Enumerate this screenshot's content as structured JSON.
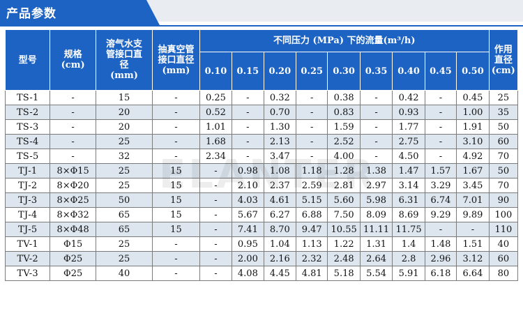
{
  "title": "产品参数",
  "watermark": "ELANTER",
  "headers": {
    "model": "型号",
    "spec": "规格",
    "spec_unit": "(cm)",
    "water": "溶气水支管接口直径",
    "water_unit": "(mm)",
    "vacuum": "抽真空管接口直径",
    "vacuum_unit": "(mm)",
    "flow": "不同压力 (MPa) 下的流量(m³/h)",
    "pressures": [
      "0.10",
      "0.15",
      "0.20",
      "0.25",
      "0.30",
      "0.35",
      "0.40",
      "0.45",
      "0.50"
    ],
    "dia": "作用直径",
    "dia_unit": "(cm)"
  },
  "rows": [
    [
      "TS-1",
      "-",
      "15",
      "-",
      "0.25",
      "-",
      "0.32",
      "-",
      "0.38",
      "-",
      "0.42",
      "-",
      "0.45",
      "25"
    ],
    [
      "TS-2",
      "-",
      "20",
      "-",
      "0.52",
      "-",
      "0.70",
      "-",
      "0.83",
      "-",
      "0.93",
      "-",
      "1.00",
      "35"
    ],
    [
      "TS-3",
      "-",
      "20",
      "-",
      "1.01",
      "-",
      "1.30",
      "-",
      "1.59",
      "-",
      "1.77",
      "-",
      "1.91",
      "50"
    ],
    [
      "TS-4",
      "-",
      "25",
      "-",
      "1.68",
      "-",
      "2.13",
      "-",
      "2.52",
      "-",
      "2.75",
      "-",
      "3.10",
      "60"
    ],
    [
      "TS-5",
      "-",
      "32",
      "-",
      "2.34",
      "-",
      "3.47",
      "-",
      "4.00",
      "-",
      "4.50",
      "-",
      "4.92",
      "70"
    ],
    [
      "TJ-1",
      "8×Φ15",
      "25",
      "15",
      "-",
      "0.98",
      "1.08",
      "1.18",
      "1.28",
      "1.38",
      "1.47",
      "1.57",
      "1.67",
      "50"
    ],
    [
      "TJ-2",
      "8×Φ20",
      "25",
      "15",
      "-",
      "2.10",
      "2.37",
      "2.59",
      "2.81",
      "2.97",
      "3.14",
      "3.29",
      "3.45",
      "70"
    ],
    [
      "TJ-3",
      "8×Φ25",
      "50",
      "15",
      "-",
      "4.03",
      "4.61",
      "5.15",
      "5.60",
      "5.98",
      "6.31",
      "6.74",
      "7.01",
      "90"
    ],
    [
      "TJ-4",
      "8×Φ32",
      "65",
      "15",
      "-",
      "5.67",
      "6.27",
      "6.88",
      "7.50",
      "8.09",
      "8.69",
      "9.29",
      "9.89",
      "100"
    ],
    [
      "TJ-5",
      "8×Φ48",
      "65",
      "15",
      "-",
      "7.41",
      "8.70",
      "9.47",
      "10.55",
      "11.11",
      "11.75",
      "-",
      "-",
      "110"
    ],
    [
      "TV-1",
      "Φ15",
      "25",
      "-",
      "-",
      "0.95",
      "1.04",
      "1.13",
      "1.22",
      "1.31",
      "1.4",
      "1.48",
      "1.51",
      "40"
    ],
    [
      "TV-2",
      "Φ25",
      "25",
      "-",
      "-",
      "2.00",
      "2.16",
      "2.32",
      "2.48",
      "2.64",
      "2.8",
      "2.96",
      "3.12",
      "60"
    ],
    [
      "TV-3",
      "Φ25",
      "40",
      "-",
      "-",
      "4.08",
      "4.45",
      "4.81",
      "5.18",
      "5.54",
      "5.91",
      "6.18",
      "6.64",
      "80"
    ]
  ],
  "colors": {
    "accent": "#1c63c4",
    "row_alt": "#dde6ef",
    "band": "#e9ecf1"
  }
}
